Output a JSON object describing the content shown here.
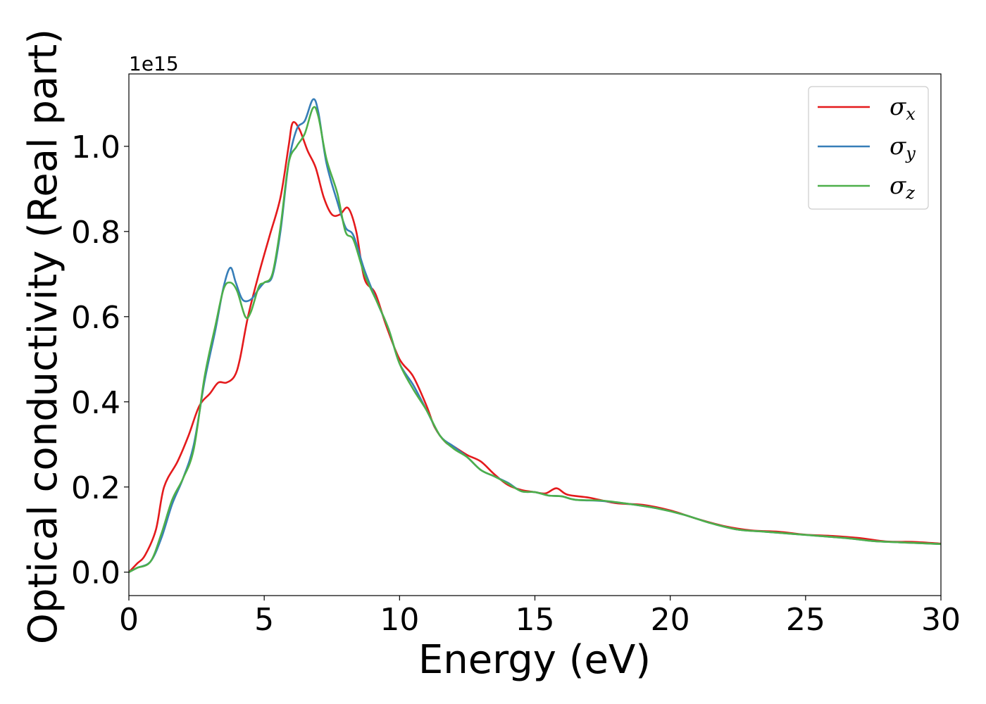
{
  "chart_data": {
    "type": "line",
    "xlabel": "Energy (eV)",
    "ylabel": "Optical conductivity (Real part)",
    "y_offset_label": "1e15",
    "xlim": [
      0,
      30
    ],
    "ylim": [
      -0.055,
      1.17
    ],
    "xticks": [
      0,
      5,
      10,
      15,
      20,
      25,
      30
    ],
    "xtick_labels": [
      "0",
      "5",
      "10",
      "15",
      "20",
      "25",
      "30"
    ],
    "yticks": [
      0.0,
      0.2,
      0.4,
      0.6,
      0.8,
      1.0
    ],
    "ytick_labels": [
      "0.0",
      "0.2",
      "0.4",
      "0.6",
      "0.8",
      "1.0"
    ],
    "grid": false,
    "legend_position": "top-right",
    "series": [
      {
        "name": "σx",
        "base": "σ",
        "sub": "x",
        "color": "#e41a1c",
        "points": [
          [
            0,
            0
          ],
          [
            0.3,
            0.02
          ],
          [
            0.6,
            0.04
          ],
          [
            1.0,
            0.1
          ],
          [
            1.3,
            0.2
          ],
          [
            1.8,
            0.26
          ],
          [
            2.2,
            0.32
          ],
          [
            2.6,
            0.39
          ],
          [
            3.0,
            0.42
          ],
          [
            3.3,
            0.445
          ],
          [
            3.6,
            0.445
          ],
          [
            3.9,
            0.46
          ],
          [
            4.1,
            0.5
          ],
          [
            4.4,
            0.6
          ],
          [
            4.8,
            0.7
          ],
          [
            5.2,
            0.79
          ],
          [
            5.6,
            0.88
          ],
          [
            5.9,
            1.0
          ],
          [
            6.05,
            1.055
          ],
          [
            6.3,
            1.04
          ],
          [
            6.6,
            0.99
          ],
          [
            6.9,
            0.95
          ],
          [
            7.2,
            0.88
          ],
          [
            7.5,
            0.84
          ],
          [
            7.8,
            0.84
          ],
          [
            8.1,
            0.855
          ],
          [
            8.4,
            0.8
          ],
          [
            8.7,
            0.69
          ],
          [
            9.1,
            0.655
          ],
          [
            9.5,
            0.58
          ],
          [
            10.0,
            0.5
          ],
          [
            10.5,
            0.46
          ],
          [
            11.0,
            0.39
          ],
          [
            11.3,
            0.34
          ],
          [
            11.7,
            0.305
          ],
          [
            12.0,
            0.295
          ],
          [
            12.5,
            0.275
          ],
          [
            13.0,
            0.26
          ],
          [
            13.5,
            0.23
          ],
          [
            14.0,
            0.205
          ],
          [
            14.5,
            0.193
          ],
          [
            15.0,
            0.188
          ],
          [
            15.4,
            0.185
          ],
          [
            15.8,
            0.197
          ],
          [
            16.2,
            0.182
          ],
          [
            17.0,
            0.175
          ],
          [
            18.0,
            0.162
          ],
          [
            19.0,
            0.158
          ],
          [
            20.0,
            0.145
          ],
          [
            21.0,
            0.125
          ],
          [
            22.0,
            0.108
          ],
          [
            23.0,
            0.098
          ],
          [
            24.0,
            0.095
          ],
          [
            25.0,
            0.088
          ],
          [
            26.0,
            0.085
          ],
          [
            27.0,
            0.08
          ],
          [
            28.0,
            0.072
          ],
          [
            29.0,
            0.071
          ],
          [
            30.0,
            0.067
          ]
        ]
      },
      {
        "name": "σy",
        "base": "σ",
        "sub": "y",
        "color": "#377eb8",
        "points": [
          [
            0,
            0
          ],
          [
            0.3,
            0.01
          ],
          [
            0.8,
            0.025
          ],
          [
            1.2,
            0.08
          ],
          [
            1.6,
            0.16
          ],
          [
            2.0,
            0.22
          ],
          [
            2.4,
            0.3
          ],
          [
            2.8,
            0.45
          ],
          [
            3.2,
            0.57
          ],
          [
            3.5,
            0.67
          ],
          [
            3.75,
            0.715
          ],
          [
            3.95,
            0.68
          ],
          [
            4.2,
            0.64
          ],
          [
            4.5,
            0.64
          ],
          [
            4.8,
            0.665
          ],
          [
            5.0,
            0.68
          ],
          [
            5.3,
            0.695
          ],
          [
            5.6,
            0.8
          ],
          [
            5.9,
            0.96
          ],
          [
            6.2,
            1.04
          ],
          [
            6.5,
            1.06
          ],
          [
            6.8,
            1.11
          ],
          [
            7.0,
            1.08
          ],
          [
            7.3,
            0.96
          ],
          [
            7.7,
            0.87
          ],
          [
            8.0,
            0.81
          ],
          [
            8.3,
            0.79
          ],
          [
            8.7,
            0.71
          ],
          [
            9.2,
            0.63
          ],
          [
            9.6,
            0.57
          ],
          [
            10.0,
            0.49
          ],
          [
            10.5,
            0.44
          ],
          [
            11.0,
            0.38
          ],
          [
            11.5,
            0.32
          ],
          [
            12.0,
            0.295
          ],
          [
            12.5,
            0.27
          ],
          [
            13.0,
            0.24
          ],
          [
            13.5,
            0.225
          ],
          [
            14.0,
            0.21
          ],
          [
            14.5,
            0.19
          ],
          [
            15.0,
            0.188
          ],
          [
            15.5,
            0.18
          ],
          [
            16.0,
            0.178
          ],
          [
            16.5,
            0.17
          ],
          [
            17.5,
            0.167
          ],
          [
            18.5,
            0.16
          ],
          [
            19.5,
            0.15
          ],
          [
            20.5,
            0.135
          ],
          [
            21.5,
            0.115
          ],
          [
            22.5,
            0.1
          ],
          [
            23.5,
            0.095
          ],
          [
            24.5,
            0.09
          ],
          [
            25.5,
            0.085
          ],
          [
            26.5,
            0.08
          ],
          [
            27.5,
            0.073
          ],
          [
            28.5,
            0.07
          ],
          [
            30.0,
            0.066
          ]
        ]
      },
      {
        "name": "σz",
        "base": "σ",
        "sub": "z",
        "color": "#4daf4a",
        "points": [
          [
            0,
            0
          ],
          [
            0.3,
            0.01
          ],
          [
            0.8,
            0.025
          ],
          [
            1.2,
            0.09
          ],
          [
            1.6,
            0.17
          ],
          [
            2.0,
            0.22
          ],
          [
            2.4,
            0.29
          ],
          [
            2.8,
            0.46
          ],
          [
            3.2,
            0.58
          ],
          [
            3.5,
            0.665
          ],
          [
            3.75,
            0.68
          ],
          [
            4.0,
            0.66
          ],
          [
            4.3,
            0.6
          ],
          [
            4.5,
            0.61
          ],
          [
            4.8,
            0.67
          ],
          [
            5.0,
            0.68
          ],
          [
            5.3,
            0.7
          ],
          [
            5.6,
            0.81
          ],
          [
            5.9,
            0.96
          ],
          [
            6.2,
            1.0
          ],
          [
            6.5,
            1.03
          ],
          [
            6.8,
            1.09
          ],
          [
            7.0,
            1.07
          ],
          [
            7.3,
            0.97
          ],
          [
            7.7,
            0.89
          ],
          [
            8.0,
            0.8
          ],
          [
            8.3,
            0.78
          ],
          [
            8.7,
            0.7
          ],
          [
            9.2,
            0.63
          ],
          [
            9.6,
            0.57
          ],
          [
            10.0,
            0.49
          ],
          [
            10.5,
            0.43
          ],
          [
            11.0,
            0.38
          ],
          [
            11.5,
            0.32
          ],
          [
            12.0,
            0.29
          ],
          [
            12.5,
            0.27
          ],
          [
            13.0,
            0.24
          ],
          [
            13.5,
            0.225
          ],
          [
            14.0,
            0.208
          ],
          [
            14.5,
            0.19
          ],
          [
            15.0,
            0.188
          ],
          [
            15.5,
            0.18
          ],
          [
            16.0,
            0.178
          ],
          [
            16.5,
            0.17
          ],
          [
            17.5,
            0.168
          ],
          [
            18.5,
            0.16
          ],
          [
            19.5,
            0.15
          ],
          [
            20.5,
            0.135
          ],
          [
            21.5,
            0.115
          ],
          [
            22.5,
            0.1
          ],
          [
            23.5,
            0.095
          ],
          [
            24.5,
            0.09
          ],
          [
            25.5,
            0.085
          ],
          [
            26.5,
            0.08
          ],
          [
            27.5,
            0.073
          ],
          [
            28.5,
            0.07
          ],
          [
            30.0,
            0.066
          ]
        ]
      }
    ]
  }
}
